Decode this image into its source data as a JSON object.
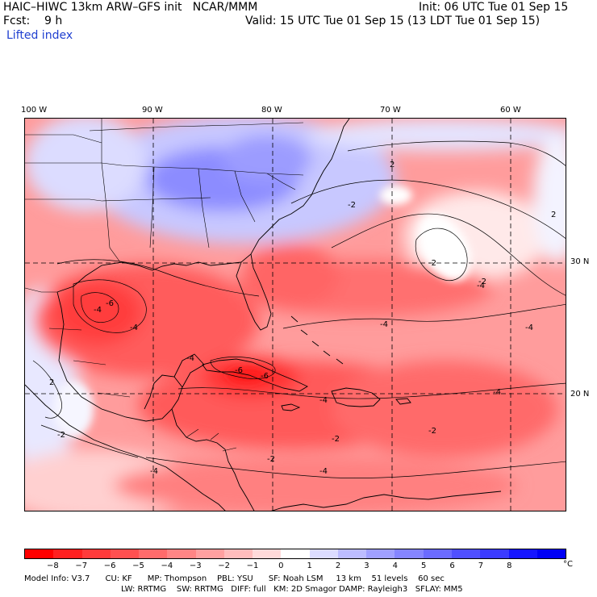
{
  "header": {
    "title": "HAIC–HIWC 13km ARW–GFS init   NCAR/MMM",
    "fcst": "Fcst:    9 h",
    "field": "Lifted index",
    "init": "Init: 06 UTC Tue 01 Sep 15",
    "valid": "Valid: 15 UTC Tue 01 Sep 15 (13 LDT Tue 01 Sep 15)"
  },
  "map": {
    "lon_labels": [
      "100 W",
      "90 W",
      "80 W",
      "70 W",
      "60 W"
    ],
    "lat_labels": [
      "30 N",
      "20 N"
    ],
    "contour_labels": [
      "2",
      "2",
      "-2",
      "-2",
      "-2",
      "-4",
      "-4",
      "-4",
      "-6",
      "-6",
      "-4",
      "-4",
      "-4",
      "-6",
      "-2",
      "-4",
      "-2",
      "-4",
      "-2",
      "-4",
      "-4",
      "2",
      "-2"
    ]
  },
  "colorbar": {
    "ticks": [
      "−8",
      "−7",
      "−6",
      "−5",
      "−4",
      "−3",
      "−2",
      "−1",
      "0",
      "1",
      "2",
      "3",
      "4",
      "5",
      "6",
      "7",
      "8"
    ],
    "unit": "°C",
    "colors": [
      "#ff0000",
      "#ff2020",
      "#ff3b3b",
      "#ff5050",
      "#ff6b6b",
      "#ff8585",
      "#ffa0a0",
      "#ffbcbc",
      "#ffdada",
      "#ffffff",
      "#dcdcff",
      "#bcbcff",
      "#a0a0ff",
      "#8585ff",
      "#6b6bff",
      "#5050ff",
      "#3b3bff",
      "#1515ff",
      "#0000f5"
    ]
  },
  "footer": {
    "line1": "Model Info: V3.7      CU: KF      MP: Thompson    PBL: YSU      SF: Noah LSM     13 km    51 levels    60 sec",
    "line2": "LW: RRTMG    SW: RRTMG   DIFF: full   KM: 2D Smagor DAMP: Rayleigh3   SFLAY: MM5"
  }
}
